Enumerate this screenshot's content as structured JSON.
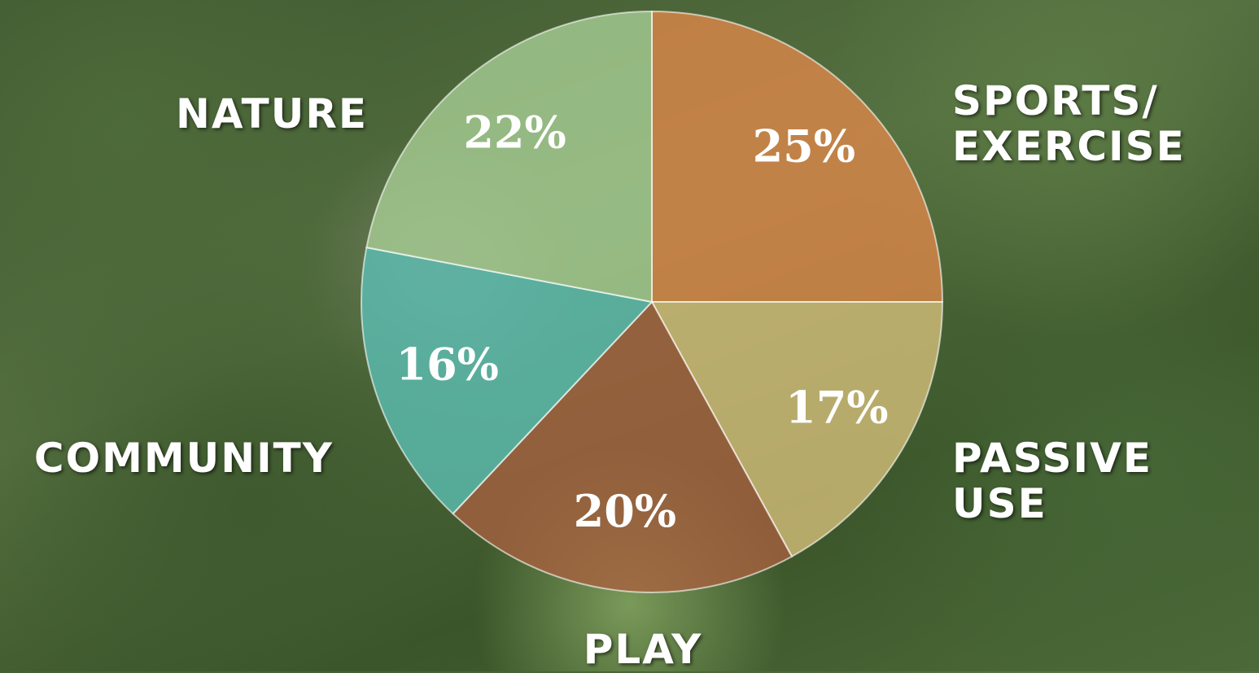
{
  "chart_data": {
    "type": "pie",
    "categories": [
      "SPORTS/ EXERCISE",
      "PASSIVE USE",
      "PLAY",
      "COMMUNITY",
      "NATURE"
    ],
    "values": [
      25,
      17,
      20,
      16,
      22
    ],
    "value_labels": [
      "25%",
      "17%",
      "20%",
      "16%",
      "22%"
    ],
    "colors": [
      "#e0884a",
      "#d8c27c",
      "#a8603f",
      "#5cc0b6",
      "#a9d096"
    ]
  }
}
